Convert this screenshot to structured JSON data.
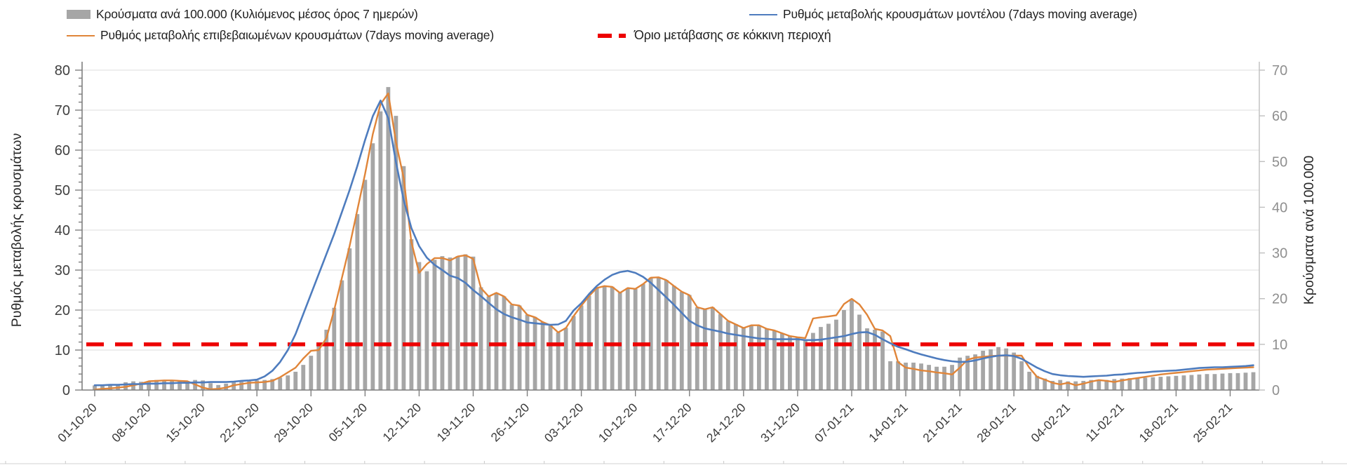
{
  "chart_data": {
    "type": "combo-bar-line",
    "title": "",
    "x_axis": {
      "tick_labels": [
        "01-10-20",
        "08-10-20",
        "15-10-20",
        "22-10-20",
        "29-10-20",
        "05-11-20",
        "12-11-20",
        "19-11-20",
        "26-11-20",
        "03-12-20",
        "10-12-20",
        "17-12-20",
        "24-12-20",
        "31-12-20",
        "07-01-21",
        "14-01-21",
        "21-01-21",
        "28-01-21",
        "04-02-21",
        "11-02-21",
        "18-02-21",
        "25-02-21"
      ],
      "points_per_tick": 7,
      "grid": false
    },
    "y_left": {
      "label": "Ρυθμός μεταβολής κρουσμάτων",
      "min": 0,
      "max": 80,
      "step": 10,
      "grid": true
    },
    "y_right": {
      "label": "Κρούσματα ανά 100.000",
      "min": 0,
      "max": 70,
      "step": 10
    },
    "threshold": {
      "value_right_axis": 10,
      "color": "#ed0000",
      "style": "dashed"
    },
    "legend": [
      {
        "label": "Κρούσματα ανά 100.000 (Κυλιόμενος μέσος όρος 7 ημερών)",
        "swatch": "gray-bar"
      },
      {
        "label": "Ρυθμός μεταβολής κρουσμάτων μοντέλου (7days moving average)",
        "swatch": "blue-line"
      },
      {
        "label": "Ρυθμός μεταβολής επιβεβαιωμένων κρουσμάτων (7days moving average)",
        "swatch": "orange-line"
      },
      {
        "label": "Όριο μετάβασης σε κόκκινη περιοχή",
        "swatch": "red-dashes"
      }
    ],
    "colors": {
      "bars": "#a6a6a6",
      "model_line": "#4e7cbe",
      "confirmed_line": "#e08539",
      "threshold": "#ed0000",
      "grid": "#e4e4e4",
      "axis": "#808080",
      "left_tick_text": "#3f3f3f",
      "right_tick_text": "#8f8f8f",
      "date_text": "#3b3b3b"
    },
    "series": [
      {
        "name": "Κρούσματα ανά 100.000 (Κυλιόμενος μέσος όρος 7 ημερών)",
        "axis": "right",
        "type": "bar",
        "values": [
          1.0,
          1.0,
          1.2,
          1.2,
          1.7,
          1.9,
          1.8,
          1.9,
          2.2,
          2.2,
          2.1,
          2.1,
          1.9,
          2.2,
          2.1,
          1.5,
          1.1,
          1.4,
          1.7,
          1.8,
          1.9,
          2.1,
          2.2,
          2.4,
          2.7,
          3.2,
          4.0,
          5.5,
          7.5,
          10.2,
          13.2,
          18.0,
          24.0,
          31.0,
          38.5,
          46.0,
          54.0,
          61.0,
          66.3,
          60.0,
          49.0,
          33.0,
          28.0,
          26.0,
          28.5,
          29.3,
          29.0,
          29.3,
          29.7,
          29.2,
          22.5,
          20.5,
          21.3,
          20.5,
          18.7,
          18.5,
          16.5,
          16.0,
          14.9,
          14.2,
          12.6,
          13.6,
          16.2,
          18.5,
          20.6,
          22.3,
          22.8,
          22.6,
          21.3,
          22.3,
          22.1,
          23.2,
          24.6,
          24.7,
          24.1,
          22.8,
          21.5,
          20.8,
          18.1,
          17.7,
          18.1,
          16.6,
          15.1,
          14.4,
          13.6,
          14.2,
          14.2,
          13.4,
          13.0,
          12.4,
          11.8,
          11.6,
          11.1,
          12.5,
          13.8,
          14.5,
          15.4,
          17.5,
          19.7,
          16.5,
          13.5,
          13.2,
          12.8,
          6.3,
          6.3,
          6.0,
          6.0,
          5.8,
          5.5,
          5.1,
          5.1,
          5.5,
          7.1,
          7.5,
          7.8,
          8.6,
          8.9,
          9.4,
          9.1,
          8.2,
          6.3,
          4.0,
          3.1,
          2.5,
          2.0,
          2.2,
          1.9,
          1.9,
          2.0,
          2.2,
          2.3,
          2.2,
          2.4,
          2.5,
          2.6,
          2.7,
          2.7,
          2.8,
          2.9,
          3.0,
          3.1,
          3.2,
          3.3,
          3.4,
          3.5,
          3.5,
          3.6,
          3.7,
          3.7,
          3.8,
          3.9
        ]
      },
      {
        "name": "Ρυθμός μεταβολής κρουσμάτων μοντέλου (7days moving average)",
        "axis": "left",
        "type": "line",
        "values": [
          1.2,
          1.2,
          1.3,
          1.3,
          1.4,
          1.5,
          1.5,
          1.6,
          1.6,
          1.7,
          1.7,
          1.8,
          1.8,
          1.9,
          1.9,
          2.0,
          2.0,
          2.0,
          2.1,
          2.3,
          2.4,
          2.6,
          3.4,
          4.8,
          7.0,
          10.0,
          14.0,
          19.0,
          24.0,
          29.0,
          34.0,
          39.0,
          44.5,
          50.0,
          56.0,
          62.5,
          68.5,
          72.4,
          68.0,
          57.0,
          47.5,
          40.5,
          36.0,
          33.1,
          31.3,
          30.0,
          28.6,
          28.0,
          26.8,
          25.0,
          23.5,
          21.8,
          20.2,
          19.0,
          18.2,
          17.6,
          16.9,
          16.7,
          16.5,
          16.3,
          16.4,
          17.3,
          19.9,
          21.7,
          24.0,
          26.0,
          27.6,
          28.8,
          29.5,
          29.8,
          29.3,
          28.3,
          26.8,
          25.0,
          23.2,
          21.3,
          19.3,
          17.3,
          16.2,
          15.4,
          15.0,
          14.6,
          14.1,
          13.8,
          13.5,
          13.2,
          12.9,
          12.8,
          12.7,
          12.7,
          12.7,
          12.7,
          12.5,
          12.5,
          12.6,
          12.9,
          13.2,
          13.5,
          14.0,
          14.4,
          14.5,
          13.8,
          12.7,
          11.7,
          10.8,
          10.2,
          9.5,
          8.9,
          8.4,
          7.9,
          7.5,
          7.2,
          7.0,
          7.1,
          7.4,
          7.9,
          8.3,
          8.6,
          8.7,
          8.5,
          7.8,
          6.7,
          5.6,
          4.7,
          4.0,
          3.7,
          3.5,
          3.4,
          3.3,
          3.4,
          3.5,
          3.6,
          3.8,
          3.9,
          4.1,
          4.3,
          4.4,
          4.6,
          4.7,
          4.8,
          4.9,
          5.1,
          5.3,
          5.5,
          5.6,
          5.7,
          5.7,
          5.8,
          5.9,
          6.0,
          6.2
        ]
      },
      {
        "name": "Ρυθμός μεταβολής επιβεβαιωμένων κρουσμάτων (7days moving average)",
        "axis": "left",
        "type": "line",
        "values": [
          0.1,
          0.3,
          0.4,
          0.6,
          0.8,
          1.2,
          1.6,
          2.2,
          2.3,
          2.4,
          2.4,
          2.3,
          2.2,
          1.4,
          0.6,
          0.2,
          0.3,
          0.6,
          1.2,
          1.5,
          1.8,
          1.9,
          2.0,
          2.3,
          3.2,
          4.4,
          5.6,
          7.9,
          9.8,
          10.0,
          13.0,
          20.0,
          28.0,
          36.0,
          45.0,
          54.0,
          64.0,
          71.5,
          74.2,
          62.0,
          53.0,
          37.0,
          29.3,
          31.5,
          33.0,
          33.0,
          32.4,
          33.4,
          33.7,
          32.8,
          25.5,
          23.4,
          24.3,
          23.4,
          21.4,
          21.1,
          18.8,
          18.2,
          17.0,
          16.2,
          14.4,
          15.5,
          18.5,
          21.1,
          23.5,
          25.5,
          26.0,
          25.8,
          24.3,
          25.5,
          25.3,
          26.5,
          28.1,
          28.2,
          27.5,
          26.0,
          24.6,
          23.7,
          20.7,
          20.2,
          20.7,
          19.0,
          17.3,
          16.4,
          15.5,
          16.2,
          16.2,
          15.3,
          14.9,
          14.2,
          13.5,
          13.2,
          13.0,
          17.9,
          18.2,
          18.4,
          18.7,
          21.5,
          22.8,
          21.4,
          18.8,
          15.3,
          14.9,
          13.5,
          7.0,
          5.6,
          5.3,
          4.9,
          4.7,
          4.4,
          4.2,
          3.9,
          5.6,
          7.6,
          8.1,
          8.3,
          8.5,
          8.6,
          8.6,
          8.6,
          8.6,
          5.6,
          3.3,
          2.6,
          1.8,
          1.4,
          1.8,
          1.2,
          1.6,
          2.1,
          2.5,
          2.3,
          2.0,
          2.4,
          2.7,
          3.0,
          3.3,
          3.6,
          3.9,
          4.1,
          4.3,
          4.5,
          4.7,
          4.9,
          5.1,
          5.2,
          5.3,
          5.4,
          5.5,
          5.6,
          5.7
        ]
      }
    ]
  }
}
